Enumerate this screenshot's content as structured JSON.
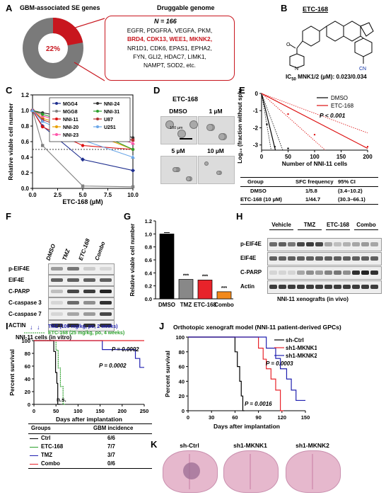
{
  "panels": [
    "A",
    "B",
    "C",
    "D",
    "E",
    "F",
    "G",
    "H",
    "I",
    "J",
    "K"
  ],
  "A": {
    "left_title": "GBM-associated SE genes",
    "right_title": "Druggable genome",
    "donut_pct": "22%",
    "n_label": "N = 166",
    "gene_lines": [
      {
        "black": "EGFR, PDGFRA, VEGFA, PKM,",
        "red": ""
      },
      {
        "black": "",
        "red": "BRD4, CDK13, WEE1, MKNK2,"
      },
      {
        "black": "NR1D1, CDK6, EPAS1, EPHA2,",
        "red": ""
      },
      {
        "black": "FYN, GLI2, HDAC7, LIMK1,",
        "red": ""
      },
      {
        "black": "NAMPT, SOD2, etc.",
        "red": ""
      }
    ],
    "colors": {
      "gray": "#7a7a7a",
      "red": "#c8161e"
    }
  },
  "B": {
    "compound": "ETC-168",
    "ic50_prefix": "IC",
    "ic50_sub": "50",
    "ic50_rest": " MNK1/2 (µM): 0.023/0.034",
    "atoms": {
      "n": "N",
      "o": "O",
      "cn": "CN"
    }
  },
  "C": {
    "ylabel": "Relative viable cell number",
    "xlabel": "ETC-168 (µM)"
  },
  "D": {
    "title": "ETC-168",
    "labels": [
      "DMSO",
      "1 µM",
      "5 µM",
      "10 µM"
    ],
    "scalebar": "100 µm"
  },
  "E": {
    "ylabel": "Log₁₀ (fraction without sphere)",
    "xlabel": "Number of NNI-11 cells",
    "legend": [
      "DMSO",
      "ETC-168"
    ],
    "pval": "P < 0.001",
    "table": {
      "headers": [
        "Group",
        "SFC frequency",
        "95% CI"
      ],
      "rows": [
        [
          "DMSO",
          "1/5.8",
          "(3.4–10.2)"
        ],
        [
          "ETC-168 (10 µM)",
          "1/44.7",
          "(30.3–66.1)"
        ]
      ]
    }
  },
  "F": {
    "columns": [
      "DMSO",
      "TMZ",
      "ETC-168",
      "Combo"
    ],
    "rows": [
      "p-EIF4E",
      "EIF4E",
      "C-PARP",
      "C-caspase 3",
      "C-caspase 7",
      "ACTIN"
    ],
    "caption": "NNI-11 cells (in vitro)"
  },
  "G": {
    "ylabel": "Relative viable cell number",
    "stars": "***"
  },
  "H": {
    "groups": [
      "Vehicle",
      "TMZ",
      "ETC-168",
      "Combo"
    ],
    "rows": [
      "p-EIF4E",
      "EIF4E",
      "C-PARP",
      "Actin"
    ],
    "caption": "NNI-11 xenografts (in vivo)"
  },
  "I": {
    "tmz_note": "TMZ (100 mg/kg, po, 2 weeks)",
    "etc_note": "ETC-168 (25 mg/kg, po, 4 weeks)",
    "ylabel": "Percent survival",
    "xlabel": "Days after implantation",
    "p1": "P = 0.0002",
    "p2": "P = 0.0002",
    "ns": "n.s.",
    "table": {
      "headers": [
        "Groups",
        "GBM incidence"
      ],
      "rows": [
        [
          "Ctrl",
          "6/6"
        ],
        [
          "ETC-168",
          "7/7"
        ],
        [
          "TMZ",
          "3/7"
        ],
        [
          "Combo",
          "0/6"
        ]
      ]
    }
  },
  "J": {
    "title": "Orthotopic xenograft model (NNI-11 patient-derived GPCs)",
    "ylabel": "Percent survival",
    "xlabel": "Days after implantation",
    "legend": [
      "sh-Ctrl",
      "sh1-MKNK1",
      "sh1-MKNK2"
    ],
    "p1": "P = 0.0003",
    "p2": "P = 0.0016"
  },
  "K": {
    "labels": [
      "sh-Ctrl",
      "sh1-MKNK1",
      "sh1-MKNK2"
    ]
  },
  "chart_data": [
    {
      "panel": "C",
      "type": "line",
      "x": [
        0,
        1,
        5,
        10
      ],
      "series": [
        {
          "name": "MGG4",
          "color": "#1f2f8f",
          "values": [
            1.0,
            0.8,
            0.37,
            0.23
          ]
        },
        {
          "name": "MGG8",
          "color": "#808080",
          "values": [
            1.0,
            0.55,
            0.03,
            0.02
          ]
        },
        {
          "name": "NNI-11",
          "color": "#d11",
          "values": [
            1.0,
            0.79,
            0.55,
            0.5
          ]
        },
        {
          "name": "NNI-20",
          "color": "#e8a000",
          "values": [
            1.0,
            0.9,
            0.75,
            0.5
          ]
        },
        {
          "name": "NNI-23",
          "color": "#ff55aa",
          "values": [
            1.0,
            0.93,
            0.78,
            0.58
          ]
        },
        {
          "name": "NNI-24",
          "color": "#333333",
          "values": [
            1.0,
            0.97,
            0.88,
            0.65
          ]
        },
        {
          "name": "NNI-31",
          "color": "#2ca02c",
          "values": [
            1.0,
            0.95,
            0.8,
            0.5
          ]
        },
        {
          "name": "U87",
          "color": "#b03030",
          "values": [
            1.0,
            0.88,
            0.7,
            0.62
          ]
        },
        {
          "name": "U251",
          "color": "#6aa6e8",
          "values": [
            1.0,
            0.86,
            0.62,
            0.4
          ]
        }
      ],
      "xlabel": "ETC-168 (µM)",
      "ylabel": "Relative viable cell number",
      "xlim": [
        0,
        10
      ],
      "ylim": [
        0,
        1.2
      ],
      "xticks": [
        "0.0",
        "2.5",
        "5.0",
        "7.5",
        "10.0"
      ],
      "yticks": [
        "0.0",
        "0.2",
        "0.4",
        "0.6",
        "0.8",
        "1.0",
        "1.2"
      ]
    },
    {
      "panel": "E",
      "type": "line",
      "x_range": [
        0,
        200
      ],
      "series": [
        {
          "name": "DMSO",
          "color": "#000000",
          "points": [
            [
              0,
              0
            ],
            [
              26,
              -3.3
            ]
          ]
        },
        {
          "name": "ETC-168",
          "color": "#d11",
          "points": [
            [
              0,
              0
            ],
            [
              200,
              -3.2
            ]
          ]
        }
      ],
      "xticks": [
        "0",
        "50",
        "100",
        "150",
        "200"
      ],
      "yticks": [
        "0",
        "-1",
        "-2",
        "-3"
      ],
      "ylim": [
        -3.3,
        0
      ]
    },
    {
      "panel": "G",
      "type": "bar",
      "categories": [
        "DMSO",
        "TMZ",
        "ETC-168",
        "Combo"
      ],
      "values": [
        1.0,
        0.3,
        0.29,
        0.11
      ],
      "colors": [
        "#000000",
        "#888888",
        "#e8232a",
        "#f2891b"
      ],
      "ylim": [
        0,
        1.2
      ],
      "yticks": [
        "0.0",
        "0.2",
        "0.4",
        "0.6",
        "0.8",
        "1.0",
        "1.2"
      ],
      "ylabel": "Relative viable cell number"
    },
    {
      "panel": "I",
      "type": "line",
      "series": [
        {
          "name": "Ctrl",
          "color": "#000000",
          "steps": [
            [
              0,
              100
            ],
            [
              45,
              100
            ],
            [
              45,
              83
            ],
            [
              49,
              83
            ],
            [
              49,
              50
            ],
            [
              52,
              50
            ],
            [
              52,
              33
            ],
            [
              54,
              33
            ],
            [
              54,
              0
            ],
            [
              60,
              0
            ]
          ]
        },
        {
          "name": "ETC-168",
          "color": "#2ca02c",
          "steps": [
            [
              0,
              100
            ],
            [
              50,
              100
            ],
            [
              50,
              85
            ],
            [
              55,
              85
            ],
            [
              55,
              57
            ],
            [
              60,
              57
            ],
            [
              60,
              28
            ],
            [
              66,
              28
            ],
            [
              66,
              0
            ],
            [
              70,
              0
            ]
          ]
        },
        {
          "name": "TMZ",
          "color": "#2020b0",
          "steps": [
            [
              0,
              100
            ],
            [
              155,
              100
            ],
            [
              155,
              86
            ],
            [
              230,
              86
            ],
            [
              230,
              72
            ],
            [
              240,
              72
            ],
            [
              240,
              58
            ],
            [
              250,
              58
            ]
          ]
        },
        {
          "name": "Combo",
          "color": "#e8232a",
          "steps": [
            [
              0,
              100
            ],
            [
              250,
              100
            ]
          ]
        }
      ],
      "xlim": [
        0,
        250
      ],
      "ylim": [
        0,
        100
      ],
      "xticks": [
        "0",
        "50",
        "100",
        "150",
        "200",
        "250"
      ],
      "yticks": [
        "0",
        "20",
        "40",
        "60",
        "80",
        "100"
      ]
    },
    {
      "panel": "J",
      "type": "line",
      "series": [
        {
          "name": "sh-Ctrl",
          "color": "#000000",
          "steps": [
            [
              0,
              100
            ],
            [
              60,
              100
            ],
            [
              60,
              80
            ],
            [
              63,
              80
            ],
            [
              63,
              60
            ],
            [
              66,
              60
            ],
            [
              66,
              40
            ],
            [
              68,
              40
            ],
            [
              68,
              20
            ],
            [
              70,
              20
            ],
            [
              70,
              0
            ],
            [
              72,
              0
            ]
          ]
        },
        {
          "name": "sh1-MKNK1",
          "color": "#e8232a",
          "steps": [
            [
              0,
              100
            ],
            [
              90,
              100
            ],
            [
              90,
              85
            ],
            [
              96,
              85
            ],
            [
              96,
              70
            ],
            [
              100,
              70
            ],
            [
              100,
              57
            ],
            [
              106,
              57
            ],
            [
              106,
              43
            ],
            [
              112,
              43
            ],
            [
              112,
              28
            ],
            [
              118,
              28
            ],
            [
              118,
              0
            ],
            [
              122,
              0
            ]
          ]
        },
        {
          "name": "sh1-MKNK2",
          "color": "#2020b0",
          "steps": [
            [
              0,
              100
            ],
            [
              100,
              100
            ],
            [
              100,
              85
            ],
            [
              112,
              85
            ],
            [
              112,
              71
            ],
            [
              118,
              71
            ],
            [
              118,
              57
            ],
            [
              126,
              57
            ],
            [
              126,
              43
            ],
            [
              132,
              43
            ],
            [
              132,
              28
            ],
            [
              138,
              28
            ],
            [
              138,
              14
            ],
            [
              150,
              14
            ]
          ]
        }
      ],
      "xlim": [
        0,
        150
      ],
      "ylim": [
        0,
        100
      ],
      "xticks": [
        "0",
        "30",
        "60",
        "90",
        "120",
        "150"
      ],
      "yticks": [
        "0",
        "20",
        "40",
        "60",
        "80",
        "100"
      ]
    }
  ]
}
